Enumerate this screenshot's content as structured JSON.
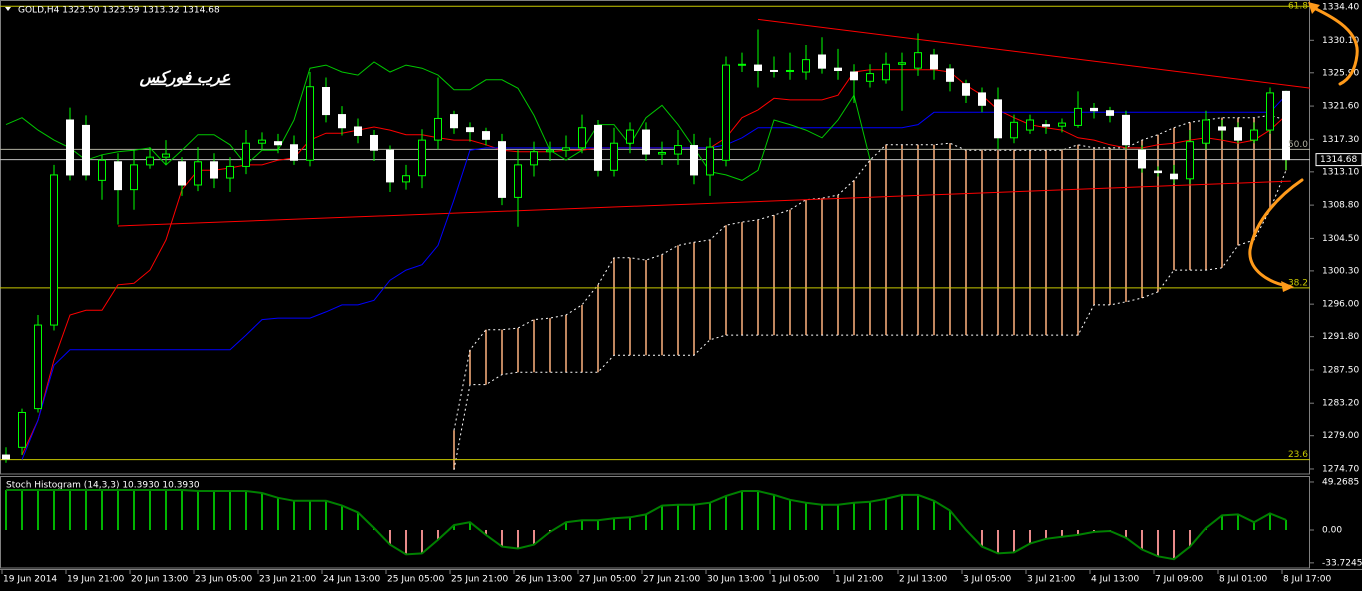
{
  "chart_data": [
    {
      "type": "candlestick",
      "header": "GOLD,H4 1323.50 1323.59 1313.32 1314.68",
      "watermark": "عرب فوركس",
      "categories": [
        "19 Jun 2014",
        null,
        null,
        null,
        "19 Jun 21:00",
        null,
        null,
        null,
        "20 Jun 13:00",
        null,
        null,
        null,
        "23 Jun 05:00",
        null,
        null,
        null,
        "23 Jun 21:00",
        null,
        null,
        null,
        "24 Jun 13:00",
        null,
        null,
        null,
        "25 Jun 05:00",
        null,
        null,
        null,
        "25 Jun 21:00",
        null,
        null,
        null,
        "26 Jun 13:00",
        null,
        null,
        null,
        "27 Jun 05:00",
        null,
        null,
        null,
        "27 Jun 21:00",
        null,
        null,
        null,
        "30 Jun 13:00",
        null,
        null,
        null,
        "1 Jul 05:00",
        null,
        null,
        null,
        "1 Jul 21:00",
        null,
        null,
        null,
        "2 Jul 13:00",
        null,
        null,
        null,
        "3 Jul 05:00",
        null,
        null,
        null,
        "3 Jul 21:00",
        null,
        null,
        null,
        "4 Jul 13:00",
        null,
        null,
        null,
        "7 Jul 09:00",
        null,
        null,
        null,
        "8 Jul 01:00",
        null,
        null,
        null,
        "8 Jul 17:00"
      ],
      "open": [
        1276.5,
        1277.5,
        1282.5,
        1293.3,
        1319.8,
        1319.1,
        1312.0,
        1314.4,
        1310.8,
        1314.0,
        1315.0,
        1314.4,
        1311.4,
        1314.4,
        1312.3,
        1313.8,
        1316.8,
        1317.0,
        1316.6,
        1314.6,
        1324.0,
        1320.5,
        1318.9,
        1317.8,
        1315.9,
        1311.8,
        1312.6,
        1317.2,
        1320.5,
        1318.8,
        1318.3,
        1317.0,
        1309.8,
        1314.0,
        1315.7,
        1315.9,
        1316.2,
        1319.1,
        1313.3,
        1316.8,
        1318.5,
        1315.4,
        1315.4,
        1316.5,
        1312.7,
        1314.6,
        1326.9,
        1326.9,
        1326.2,
        1326.1,
        1326.0,
        1328.2,
        1326.5,
        1326.0,
        1324.8,
        1325.0,
        1327.0,
        1326.5,
        1328.2,
        1326.4,
        1324.5,
        1323.3,
        1322.4,
        1317.5,
        1318.5,
        1319.2,
        1319.0,
        1319.1,
        1321.3,
        1321.0,
        1320.4,
        1315.9,
        1313.2,
        1312.8,
        1312.2,
        1316.8,
        1318.9,
        1318.8,
        1317.2,
        1318.5,
        1323.5
      ],
      "high": [
        1277.5,
        1282.5,
        1294.6,
        1314.0,
        1321.4,
        1320.4,
        1315.3,
        1315.5,
        1315.9,
        1316.3,
        1317.2,
        1315.0,
        1316.3,
        1315.5,
        1315.0,
        1318.5,
        1318.2,
        1318.0,
        1317.8,
        1326.0,
        1325.3,
        1321.6,
        1320.0,
        1318.5,
        1316.5,
        1314.0,
        1318.6,
        1325.3,
        1321.0,
        1319.5,
        1318.8,
        1318.0,
        1315.9,
        1317.0,
        1317.0,
        1317.8,
        1320.5,
        1319.8,
        1318.8,
        1319.5,
        1319.5,
        1317.0,
        1318.5,
        1318.0,
        1317.5,
        1328.0,
        1328.5,
        1331.5,
        1328.0,
        1328.5,
        1329.5,
        1330.5,
        1329.0,
        1327.0,
        1327.0,
        1328.5,
        1328.5,
        1331.0,
        1329.0,
        1327.0,
        1325.0,
        1324.0,
        1324.0,
        1320.5,
        1320.5,
        1319.8,
        1320.0,
        1323.5,
        1322.0,
        1321.5,
        1321.0,
        1316.5,
        1313.8,
        1314.0,
        1318.5,
        1321.0,
        1319.8,
        1319.5,
        1319.5,
        1324.0,
        1323.59
      ],
      "low": [
        1275.5,
        1276.5,
        1282.0,
        1292.6,
        1312.0,
        1312.0,
        1309.5,
        1306.3,
        1308.2,
        1313.5,
        1314.0,
        1310.0,
        1310.6,
        1311.0,
        1310.5,
        1312.8,
        1315.9,
        1315.5,
        1314.0,
        1313.8,
        1319.5,
        1317.8,
        1316.8,
        1314.5,
        1310.5,
        1310.8,
        1311.0,
        1316.0,
        1318.0,
        1317.0,
        1316.5,
        1308.8,
        1306.0,
        1312.5,
        1314.5,
        1315.0,
        1315.5,
        1312.5,
        1312.5,
        1315.5,
        1314.5,
        1314.0,
        1314.0,
        1311.5,
        1310.0,
        1313.8,
        1326.0,
        1324.0,
        1325.3,
        1325.0,
        1325.0,
        1325.8,
        1325.0,
        1322.0,
        1324.0,
        1324.5,
        1321.0,
        1325.5,
        1325.0,
        1323.5,
        1322.0,
        1320.8,
        1316.0,
        1316.8,
        1318.0,
        1318.0,
        1318.2,
        1318.8,
        1320.0,
        1319.5,
        1316.0,
        1313.0,
        1312.5,
        1311.6,
        1311.5,
        1316.0,
        1317.2,
        1316.8,
        1316.8,
        1318.0,
        1313.32
      ],
      "close": [
        1276.0,
        1282.0,
        1293.3,
        1312.7,
        1312.7,
        1312.7,
        1314.6,
        1310.8,
        1314.0,
        1315.0,
        1315.4,
        1311.4,
        1314.4,
        1312.3,
        1313.8,
        1316.8,
        1317.2,
        1316.6,
        1314.6,
        1324.1,
        1320.5,
        1318.8,
        1317.8,
        1315.9,
        1311.8,
        1312.6,
        1317.2,
        1320.0,
        1318.8,
        1318.3,
        1317.3,
        1309.8,
        1314.0,
        1315.7,
        1315.9,
        1316.2,
        1318.8,
        1313.3,
        1316.8,
        1318.5,
        1315.4,
        1315.6,
        1316.5,
        1312.7,
        1316.3,
        1326.9,
        1327.0,
        1326.2,
        1326.1,
        1326.2,
        1327.6,
        1326.5,
        1326.2,
        1325.0,
        1325.8,
        1327.0,
        1327.2,
        1328.5,
        1326.4,
        1324.8,
        1323.0,
        1321.7,
        1317.5,
        1319.5,
        1319.8,
        1319.0,
        1319.4,
        1321.3,
        1321.0,
        1320.4,
        1316.6,
        1313.6,
        1313.0,
        1312.2,
        1317.0,
        1319.8,
        1318.5,
        1317.2,
        1318.5,
        1323.3,
        1314.68
      ],
      "colors": {
        "up": "#00ff00",
        "down": "#ffffff",
        "wick": "#00ff00"
      },
      "lines": [
        {
          "color": "#ff0000",
          "values": [
            null,
            1276.5,
            1281.0,
            1288.8,
            1294.6,
            1295.2,
            1295.2,
            1298.5,
            1298.7,
            1300.4,
            1304.3,
            1310.8,
            1313.3,
            1313.3,
            1313.6,
            1314.0,
            1314.0,
            1314.6,
            1314.9,
            1317.2,
            1318.1,
            1318.1,
            1318.5,
            1318.9,
            1318.5,
            1317.9,
            1317.9,
            1317.5,
            1317.2,
            1317.2,
            1316.6,
            1315.9,
            1315.7,
            1315.7,
            1315.7,
            1315.9,
            1315.9,
            1316.2,
            1316.2,
            1316.2,
            1316.2,
            1316.2,
            1316.2,
            1316.2,
            1316.2,
            1317.5,
            1320.1,
            1321.1,
            1322.6,
            1322.4,
            1322.4,
            1322.4,
            1323.0,
            1326.0,
            1326.3,
            1326.3,
            1326.3,
            1326.3,
            1326.3,
            1326.0,
            1324.3,
            1323.0,
            1321.1,
            1320.1,
            1319.2,
            1318.8,
            1318.5,
            1317.5,
            1317.2,
            1316.6,
            1316.2,
            1316.2,
            1316.6,
            1316.8,
            1317.2,
            1317.5,
            1317.2,
            1316.8,
            1317.2,
            1318.5,
            1320.4
          ]
        },
        {
          "color": "#0000ff",
          "values": [
            null,
            1275.9,
            1281.0,
            1288.1,
            1290.1,
            1290.1,
            1290.1,
            1290.1,
            1290.1,
            1290.1,
            1290.1,
            1290.1,
            1290.1,
            1290.1,
            1290.1,
            1292.0,
            1294.0,
            1294.2,
            1294.2,
            1294.2,
            1295.0,
            1295.9,
            1295.9,
            1296.5,
            1299.1,
            1300.4,
            1301.1,
            1303.6,
            1309.5,
            1315.9,
            1316.2,
            1316.2,
            1316.2,
            1316.2,
            1316.2,
            1316.2,
            1316.2,
            1316.2,
            1316.2,
            1316.2,
            1316.2,
            1316.2,
            1316.2,
            1316.2,
            1316.2,
            1316.6,
            1317.5,
            1318.8,
            1318.8,
            1318.8,
            1318.8,
            1318.8,
            1318.8,
            1318.8,
            1318.8,
            1318.8,
            1318.8,
            1319.2,
            1320.8,
            1320.8,
            1320.8,
            1320.8,
            1320.8,
            1320.8,
            1320.8,
            1320.8,
            1320.8,
            1320.8,
            1320.8,
            1320.8,
            1320.8,
            1320.8,
            1320.8,
            1320.8,
            1320.8,
            1320.8,
            1320.8,
            1320.8,
            1320.8,
            1320.8,
            1323.0
          ]
        },
        {
          "color": "#00c800",
          "values": [
            1319.2,
            1320.1,
            1318.5,
            1317.2,
            1316.2,
            1314.6,
            1315.3,
            1315.7,
            1315.9,
            1316.2,
            1314.0,
            1315.9,
            1317.9,
            1317.9,
            1316.6,
            1314.0,
            1315.9,
            1315.9,
            1319.8,
            1326.5,
            1326.9,
            1326.0,
            1325.6,
            1327.3,
            1326.0,
            1326.9,
            1326.5,
            1325.6,
            1323.7,
            1323.7,
            1325.0,
            1325.0,
            1323.9,
            1320.4,
            1315.9,
            1314.6,
            1315.9,
            1319.2,
            1319.2,
            1316.6,
            1320.1,
            1321.7,
            1319.2,
            1316.2,
            1313.1,
            1312.7,
            1312.0,
            1313.3,
            1319.8,
            1319.2,
            1318.5,
            1317.5,
            1319.8,
            1323.0,
            1314.7,
            null,
            null,
            null,
            null,
            null,
            null,
            null,
            null,
            null,
            null,
            null,
            null,
            null,
            null,
            null,
            null,
            null,
            null,
            null,
            null,
            null,
            null,
            null,
            null,
            null,
            null
          ]
        }
      ],
      "cloud": {
        "color": "#ffb27f",
        "edge_color": "#ffffff",
        "upper": [
          null,
          null,
          null,
          null,
          null,
          null,
          null,
          null,
          null,
          null,
          null,
          null,
          null,
          null,
          null,
          null,
          null,
          null,
          null,
          null,
          null,
          null,
          null,
          null,
          null,
          null,
          null,
          null,
          1279.7,
          1290.1,
          1292.7,
          1292.7,
          1292.9,
          1294.0,
          1294.2,
          1294.6,
          1295.9,
          1298.5,
          1302.0,
          1302.0,
          1301.7,
          1302.4,
          1303.6,
          1304.0,
          1304.3,
          1306.2,
          1306.6,
          1306.9,
          1307.5,
          1308.2,
          1309.5,
          1309.7,
          1310.1,
          1312.0,
          1314.6,
          1316.6,
          1316.6,
          1316.6,
          1316.6,
          1316.8,
          1315.9,
          1315.9,
          1315.9,
          1315.9,
          1315.9,
          1315.9,
          1315.9,
          1316.6,
          1316.2,
          1316.2,
          1316.2,
          1317.2,
          1317.9,
          1318.8,
          1319.5,
          1319.8,
          1320.1,
          1320.1,
          1320.1,
          1320.4,
          1319.8
        ],
        "lower": [
          null,
          null,
          null,
          null,
          null,
          null,
          null,
          null,
          null,
          null,
          null,
          null,
          null,
          null,
          null,
          null,
          null,
          null,
          null,
          null,
          null,
          null,
          null,
          null,
          null,
          null,
          null,
          null,
          1274.6,
          1285.6,
          1285.6,
          1286.9,
          1287.2,
          1287.2,
          1287.2,
          1287.2,
          1287.2,
          1287.2,
          1289.4,
          1289.4,
          1289.4,
          1289.4,
          1289.4,
          1289.4,
          1291.4,
          1292.0,
          1292.0,
          1292.0,
          1292.0,
          1292.0,
          1292.0,
          1292.0,
          1292.0,
          1292.0,
          1292.0,
          1292.0,
          1292.0,
          1292.0,
          1292.0,
          1292.0,
          1292.0,
          1292.0,
          1292.0,
          1292.0,
          1292.0,
          1292.0,
          1292.0,
          1292.0,
          1295.9,
          1295.9,
          1296.3,
          1296.8,
          1297.6,
          1300.4,
          1300.4,
          1300.4,
          1300.7,
          1303.6,
          1304.3,
          1308.2,
          1313.3
        ]
      },
      "ylim": [
        1274.05,
        1335.05
      ],
      "yticks": [
        {
          "value": 1334.4,
          "label": "1334.40"
        },
        {
          "value": 1330.1,
          "label": "1330.10"
        },
        {
          "value": 1325.9,
          "label": "1325.90"
        },
        {
          "value": 1321.6,
          "label": "1321.60"
        },
        {
          "value": 1317.3,
          "label": "1317.30"
        },
        {
          "value": 1313.1,
          "label": "1313.10"
        },
        {
          "value": 1308.8,
          "label": "1308.80"
        },
        {
          "value": 1304.5,
          "label": "1304.50"
        },
        {
          "value": 1300.3,
          "label": "1300.30"
        },
        {
          "value": 1296.0,
          "label": "1296.00"
        },
        {
          "value": 1291.8,
          "label": "1291.80"
        },
        {
          "value": 1287.5,
          "label": "1287.50"
        },
        {
          "value": 1283.2,
          "label": "1283.20"
        },
        {
          "value": 1279.0,
          "label": "1279.00"
        },
        {
          "value": 1274.7,
          "label": "1274.70"
        }
      ],
      "last_price": {
        "value": 1314.68,
        "label": "1314.68"
      },
      "levels": [
        {
          "price": 1334.5,
          "label": "61.8",
          "color": "#c8c800"
        },
        {
          "price": 1316.0,
          "label": "50.0",
          "color": "#b0b0a0"
        },
        {
          "price": 1298.1,
          "label": "38.2",
          "color": "#c8c800"
        },
        {
          "price": 1275.9,
          "label": "23.6",
          "color": "#c8c800"
        }
      ],
      "trendlines": [
        {
          "color": "#ff0000",
          "from": [
            47,
            1332.8
          ],
          "to": [
            81.6,
            1323.9
          ]
        },
        {
          "color": "#ff0000",
          "from": [
            7,
            1306.1
          ],
          "to": [
            80.3,
            1311.9
          ]
        }
      ]
    },
    {
      "type": "bar",
      "title": "Stoch Histogram (14,3,3) 10.3930 10.3930",
      "values": [
        41,
        41,
        41,
        41,
        41,
        41,
        41,
        41,
        41,
        41,
        41,
        41,
        40,
        40,
        40,
        40,
        38,
        33,
        30,
        30,
        30,
        25,
        18,
        2,
        -15,
        -25,
        -24,
        -10,
        5,
        8,
        -5,
        -17,
        -19,
        -15,
        -2,
        8,
        10,
        10,
        12,
        13,
        16,
        25,
        26,
        26,
        28,
        35,
        40,
        40,
        36,
        31,
        28,
        26,
        26,
        28,
        29,
        32,
        36,
        36,
        30,
        20,
        0,
        -17,
        -24,
        -23,
        -14,
        -9,
        -7,
        -5,
        -2,
        -1,
        -8,
        -20,
        -27,
        -30,
        -17,
        2,
        15,
        16,
        8,
        17,
        10.393
      ],
      "colors": {
        "positive": "#00b400",
        "negative": "#e88a8a",
        "line": "#008000"
      },
      "ylim": [
        -39.0,
        55.4
      ],
      "yticks": [
        49.2685,
        {
          "value": 0,
          "label": "0.00"
        },
        -33.7245
      ]
    }
  ]
}
